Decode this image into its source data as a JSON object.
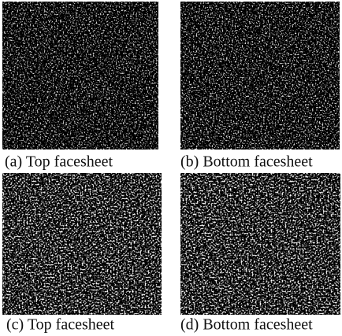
{
  "panels": [
    {
      "caption": "(a) Top facesheet"
    },
    {
      "caption": "(b) Bottom facesheet"
    },
    {
      "caption": "(c) Top facesheet"
    },
    {
      "caption": "(d) Bottom facesheet"
    }
  ]
}
